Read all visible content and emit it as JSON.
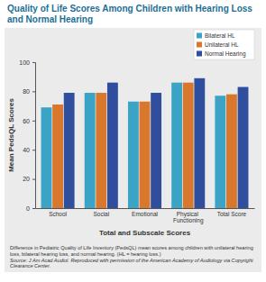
{
  "chart_data": {
    "type": "bar",
    "title": "Quality of Life Scores Among Children with Hearing Loss and Normal Hearing",
    "x_label": "Total and Subscale Scores",
    "y_label": "Mean PedsQL Scores",
    "categories": [
      "School",
      "Social",
      "Emotional",
      "Physical Functioning",
      "Total Score"
    ],
    "series": [
      {
        "name": "Bilateral HL",
        "color": "#3ba3c6",
        "values": [
          69,
          79,
          73,
          86,
          77
        ]
      },
      {
        "name": "Unilateral HL",
        "color": "#d9782d",
        "values": [
          71,
          79,
          73,
          86,
          78
        ]
      },
      {
        "name": "Normal Hearing",
        "color": "#2f4f9e",
        "values": [
          79,
          86,
          79,
          89,
          83
        ]
      }
    ],
    "ylim": [
      0,
      100
    ],
    "yticks": [
      0,
      20,
      40,
      60,
      80,
      100
    ],
    "grid": false,
    "legend": "top right",
    "annotations": [
      "Difference in Pediatric Quality of Life Inventory (PedsQL) mean scores among children with unilateral hearing loss, bilateral hearing loss, and normal hearing. (HL = hearing loss.)",
      "Source: J Am Acad Audiol. Reproduced with permission of the American Academy of Audiology via Copyright Clearance Center."
    ]
  }
}
